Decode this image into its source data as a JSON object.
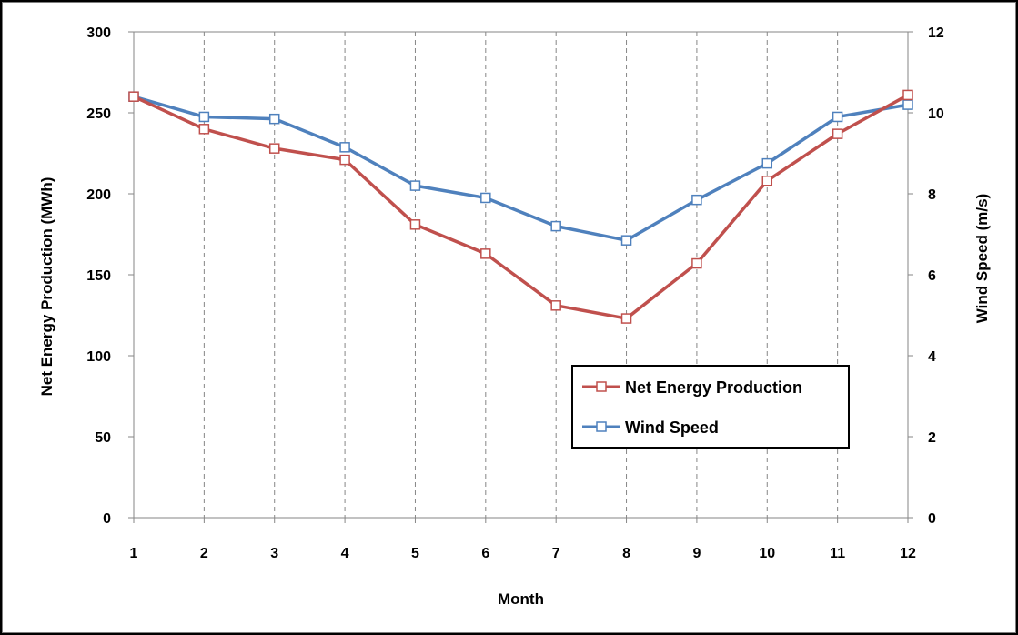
{
  "chart_data": {
    "type": "line",
    "title": "",
    "xlabel": "Month",
    "ylabel": "Net Energy Production (MWh)",
    "y2label": "Wind Speed (m/s)",
    "x": [
      1,
      2,
      3,
      4,
      5,
      6,
      7,
      8,
      9,
      10,
      11,
      12
    ],
    "xlim": [
      1,
      12
    ],
    "ylim": [
      0,
      300
    ],
    "y2lim": [
      0,
      12
    ],
    "yticks": [
      0,
      50,
      100,
      150,
      200,
      250,
      300
    ],
    "y2ticks": [
      0,
      2,
      4,
      6,
      8,
      10,
      12
    ],
    "grid": "vertical-dashed",
    "legend_position": "lower-right",
    "series": [
      {
        "name": "Net Energy Production",
        "axis": "left",
        "color": "#c0504d",
        "marker": "open-square",
        "values": [
          260,
          240,
          228,
          221,
          181,
          163,
          131,
          123,
          157,
          208,
          237,
          261
        ]
      },
      {
        "name": "Wind Speed",
        "axis": "right",
        "color": "#4f81bd",
        "marker": "open-square",
        "values": [
          10.4,
          9.9,
          9.85,
          9.15,
          8.2,
          7.9,
          7.2,
          6.85,
          7.85,
          8.75,
          9.9,
          10.2
        ]
      }
    ]
  }
}
